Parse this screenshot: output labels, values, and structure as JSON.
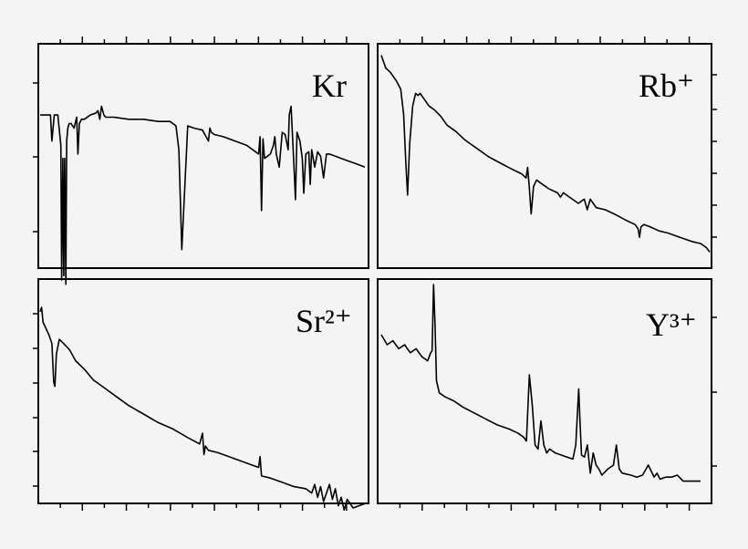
{
  "chart_data": [
    {
      "type": "line",
      "label": "Kr",
      "series": [
        {
          "x": [
            0,
            2,
            3.5,
            4,
            4.8,
            6,
            7,
            7.3,
            7.7,
            8,
            8.3,
            8.7,
            9,
            9.4,
            9.8,
            10.5,
            11.5,
            12.4,
            12.8,
            13.3,
            14,
            15,
            17,
            19,
            19.6,
            20.2,
            20.8,
            21.6,
            22.2,
            25,
            30,
            35,
            40,
            44,
            46,
            47,
            48,
            50,
            52,
            55,
            57,
            57.5,
            58,
            59,
            62,
            66,
            70,
            72,
            74,
            74.5,
            75,
            75.5,
            76,
            78,
            79,
            79.5,
            80,
            81,
            82,
            83,
            84,
            84.4,
            85,
            86,
            86.5,
            87,
            88,
            88.8,
            89.3,
            90,
            91,
            91.5,
            92,
            93,
            94,
            95,
            96,
            97,
            98,
            100,
            102,
            104,
            106,
            108,
            110
          ],
          "y": [
            0.84,
            0.84,
            0.84,
            0.72,
            0.84,
            0.84,
            0.7,
            0.08,
            0.64,
            0.1,
            0.64,
            0.06,
            0.72,
            0.78,
            0.8,
            0.8,
            0.78,
            0.83,
            0.66,
            0.8,
            0.82,
            0.82,
            0.84,
            0.85,
            0.86,
            0.82,
            0.88,
            0.84,
            0.83,
            0.83,
            0.82,
            0.82,
            0.81,
            0.81,
            0.79,
            0.68,
            0.22,
            0.79,
            0.78,
            0.77,
            0.72,
            0.78,
            0.76,
            0.75,
            0.74,
            0.72,
            0.7,
            0.68,
            0.66,
            0.74,
            0.4,
            0.73,
            0.64,
            0.66,
            0.7,
            0.74,
            0.66,
            0.6,
            0.76,
            0.75,
            0.68,
            0.84,
            0.88,
            0.6,
            0.45,
            0.76,
            0.72,
            0.64,
            0.48,
            0.66,
            0.67,
            0.52,
            0.68,
            0.6,
            0.67,
            0.65,
            0.55,
            0.66,
            0.66,
            0.65,
            0.64,
            0.63,
            0.62,
            0.61,
            0.6
          ]
        }
      ]
    },
    {
      "type": "line",
      "label": "Rb⁺",
      "series": [
        {
          "x": [
            0,
            0.5,
            1.5,
            3,
            5,
            6.5,
            7.5,
            8.2,
            8.8,
            9.5,
            10.5,
            11.5,
            12.3,
            13,
            14,
            16,
            18,
            20,
            22,
            25,
            28,
            32,
            36,
            40,
            44,
            47,
            48.5,
            49,
            49.5,
            50.2,
            51,
            52,
            53,
            56,
            59,
            60,
            61,
            63,
            66,
            68,
            69,
            70,
            72,
            75,
            78,
            82,
            85,
            86,
            86.5,
            87,
            88,
            90,
            93,
            96,
            100,
            104,
            107,
            109,
            110
          ],
          "y": [
            0.98,
            0.96,
            0.92,
            0.9,
            0.86,
            0.82,
            0.7,
            0.48,
            0.32,
            0.56,
            0.74,
            0.8,
            0.79,
            0.8,
            0.78,
            0.74,
            0.72,
            0.69,
            0.65,
            0.62,
            0.58,
            0.54,
            0.5,
            0.47,
            0.44,
            0.42,
            0.4,
            0.45,
            0.37,
            0.23,
            0.36,
            0.39,
            0.38,
            0.35,
            0.33,
            0.31,
            0.33,
            0.31,
            0.28,
            0.3,
            0.25,
            0.3,
            0.26,
            0.25,
            0.23,
            0.2,
            0.18,
            0.16,
            0.12,
            0.17,
            0.18,
            0.17,
            0.15,
            0.14,
            0.12,
            0.1,
            0.09,
            0.07,
            0.05
          ]
        }
      ]
    },
    {
      "type": "line",
      "label": "Sr²⁺",
      "series": [
        {
          "x": [
            0,
            0.5,
            1,
            2,
            3,
            4,
            4.6,
            5,
            5.5,
            6.5,
            8,
            10,
            12,
            15,
            18,
            22,
            26,
            30,
            35,
            40,
            45,
            50,
            54,
            55,
            55.5,
            56,
            57,
            60,
            64,
            68,
            72,
            74,
            74.5,
            75,
            78,
            82,
            86,
            90,
            92,
            93,
            94,
            95,
            96,
            97,
            98,
            99,
            100,
            101,
            102,
            103,
            104,
            106,
            108,
            110
          ],
          "y": [
            0.95,
            0.97,
            0.9,
            0.87,
            0.84,
            0.8,
            0.62,
            0.6,
            0.75,
            0.82,
            0.8,
            0.77,
            0.72,
            0.68,
            0.63,
            0.59,
            0.55,
            0.51,
            0.47,
            0.43,
            0.4,
            0.36,
            0.33,
            0.38,
            0.28,
            0.32,
            0.3,
            0.29,
            0.27,
            0.25,
            0.23,
            0.22,
            0.27,
            0.18,
            0.17,
            0.15,
            0.13,
            0.12,
            0.1,
            0.14,
            0.08,
            0.13,
            0.06,
            0.1,
            0.14,
            0.07,
            0.12,
            0.04,
            0.08,
            0.02,
            0.07,
            0.03,
            0.04,
            0.05
          ]
        }
      ]
    },
    {
      "type": "line",
      "label": "Y³⁺",
      "series": [
        {
          "x": [
            0,
            2,
            4,
            6,
            8,
            10,
            12,
            14,
            16,
            17,
            17.5,
            18,
            18.5,
            19,
            20,
            22,
            25,
            28,
            32,
            36,
            40,
            44,
            47,
            49,
            50,
            51,
            52,
            53,
            54,
            55,
            56,
            57,
            58,
            60,
            62,
            64,
            66,
            67,
            68,
            68.5,
            69,
            70,
            71,
            72,
            73,
            74,
            75,
            76,
            78,
            80,
            81,
            82,
            83,
            86,
            88,
            90,
            92,
            94,
            95,
            96,
            98,
            100,
            102,
            104,
            106,
            108,
            110
          ],
          "y": [
            0.75,
            0.7,
            0.72,
            0.68,
            0.7,
            0.66,
            0.68,
            0.64,
            0.62,
            0.66,
            0.67,
            1.0,
            0.8,
            0.52,
            0.46,
            0.44,
            0.42,
            0.39,
            0.36,
            0.33,
            0.3,
            0.28,
            0.26,
            0.24,
            0.22,
            0.55,
            0.4,
            0.2,
            0.18,
            0.32,
            0.2,
            0.16,
            0.18,
            0.16,
            0.15,
            0.14,
            0.13,
            0.2,
            0.48,
            0.3,
            0.15,
            0.14,
            0.2,
            0.06,
            0.16,
            0.1,
            0.08,
            0.05,
            0.08,
            0.1,
            0.2,
            0.08,
            0.06,
            0.05,
            0.04,
            0.05,
            0.1,
            0.04,
            0.06,
            0.03,
            0.04,
            0.04,
            0.05,
            0.02,
            0.02,
            0.02,
            0.02
          ]
        }
      ]
    }
  ]
}
